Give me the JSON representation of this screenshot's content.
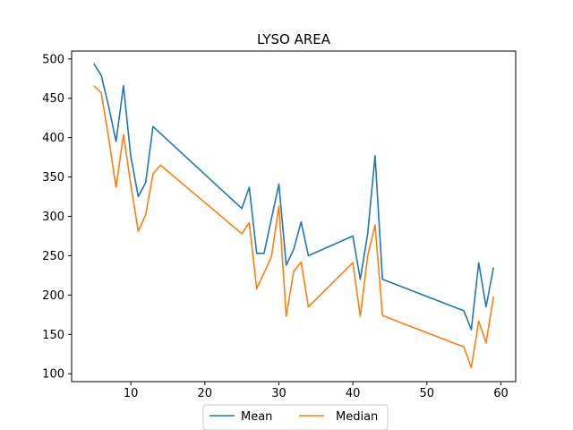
{
  "chart_data": {
    "type": "line",
    "title": "LYSO AREA",
    "xlabel": "",
    "ylabel": "",
    "xlim": [
      2,
      62
    ],
    "ylim": [
      90,
      510
    ],
    "xticks": [
      10,
      20,
      30,
      40,
      50,
      60
    ],
    "yticks": [
      100,
      150,
      200,
      250,
      300,
      350,
      400,
      450,
      500
    ],
    "grid": false,
    "legend_position": "bottom-center",
    "series": [
      {
        "name": "Mean",
        "color": "#1f77b4",
        "x": [
          5,
          6,
          7,
          8,
          9,
          10,
          11,
          12,
          13,
          25,
          26,
          27,
          28,
          29,
          30,
          31,
          32,
          33,
          34,
          40,
          41,
          42,
          43,
          44,
          55,
          56,
          57,
          58,
          59
        ],
        "y": [
          494,
          479,
          440,
          395,
          466,
          376,
          325,
          343,
          414,
          310,
          337,
          253,
          253,
          297,
          341,
          238,
          258,
          293,
          250,
          275,
          220,
          278,
          377,
          220,
          180,
          156,
          241,
          185,
          235
        ]
      },
      {
        "name": "Median",
        "color": "#ff7f0e",
        "x": [
          5,
          6,
          7,
          8,
          9,
          10,
          11,
          12,
          13,
          14,
          25,
          26,
          27,
          28,
          29,
          30,
          31,
          32,
          33,
          34,
          40,
          41,
          42,
          43,
          44,
          55,
          56,
          57,
          58,
          59
        ],
        "y": [
          466,
          457,
          400,
          337,
          404,
          340,
          281,
          302,
          354,
          365,
          278,
          292,
          208,
          228,
          249,
          313,
          173,
          230,
          242,
          185,
          241,
          173,
          250,
          289,
          174,
          134,
          108,
          167,
          139,
          198
        ]
      }
    ]
  }
}
